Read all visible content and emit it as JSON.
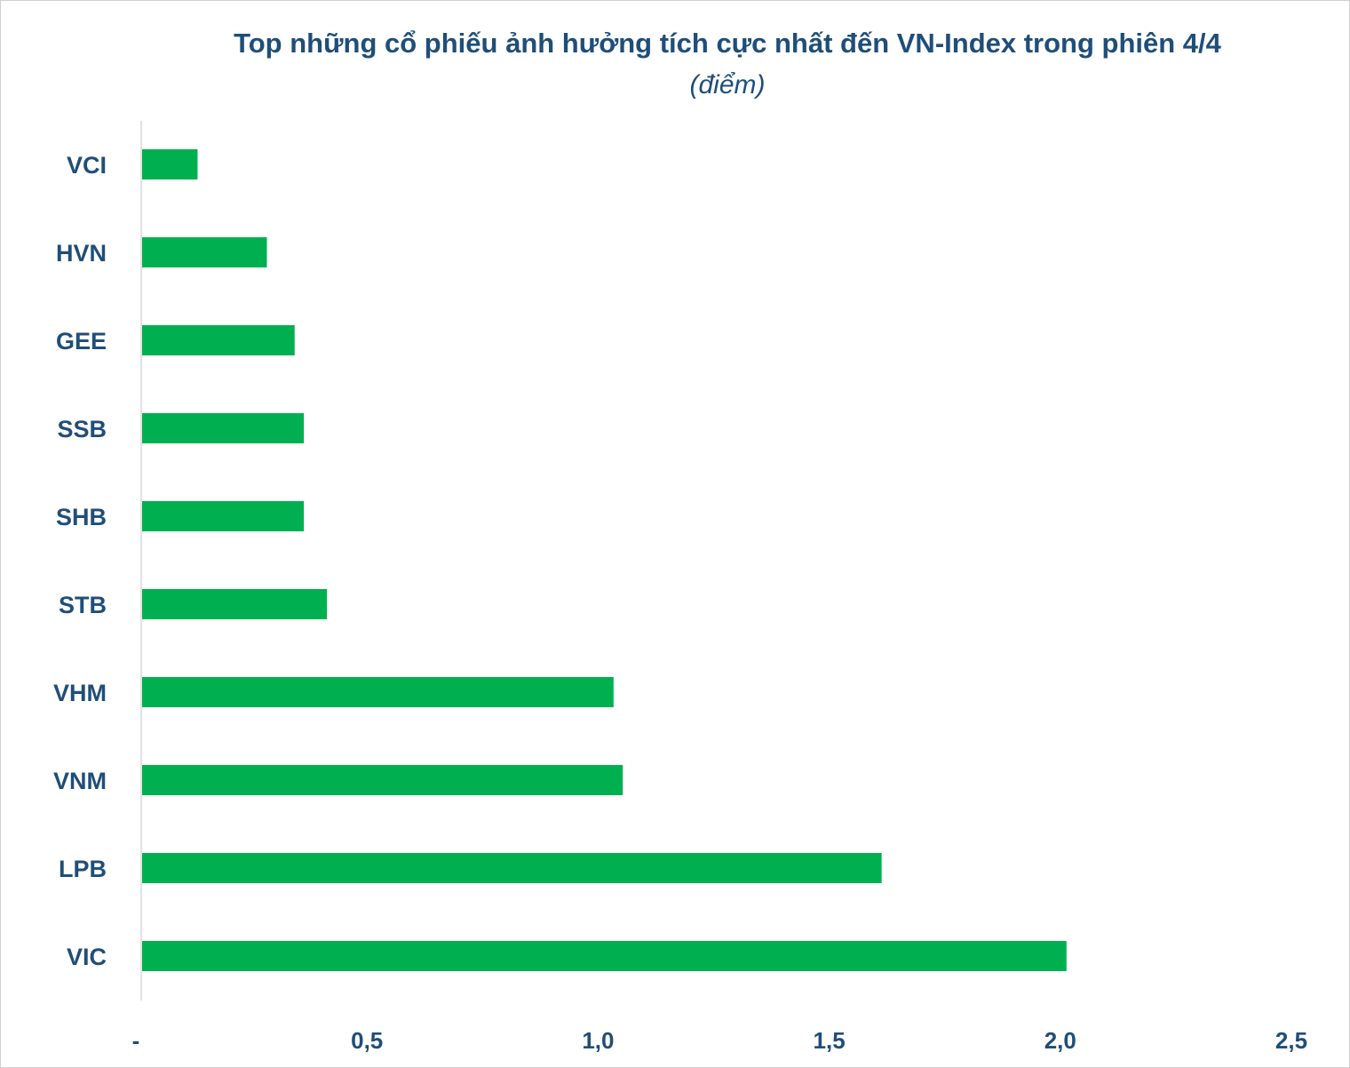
{
  "chart_data": {
    "type": "bar",
    "orientation": "horizontal",
    "title": "Top những cổ phiếu ảnh hưởng tích cực nhất đến VN-Index trong phiên 4/4",
    "subtitle": "(điểm)",
    "categories": [
      "VCI",
      "HVN",
      "GEE",
      "SSB",
      "SHB",
      "STB",
      "VHM",
      "VNM",
      "LPB",
      "VIC"
    ],
    "values": [
      0.12,
      0.27,
      0.33,
      0.35,
      0.35,
      0.4,
      1.02,
      1.04,
      1.6,
      2.0
    ],
    "xlim": [
      0,
      2.5
    ],
    "x_ticks": [
      0,
      0.5,
      1.0,
      1.5,
      2.0,
      2.5
    ],
    "x_tick_labels": [
      "-",
      "0,5",
      "1,0",
      "1,5",
      "2,0",
      "2,5"
    ],
    "bar_color": "#00b050",
    "text_color": "#1f4e79",
    "grid": false,
    "legend": "none"
  }
}
